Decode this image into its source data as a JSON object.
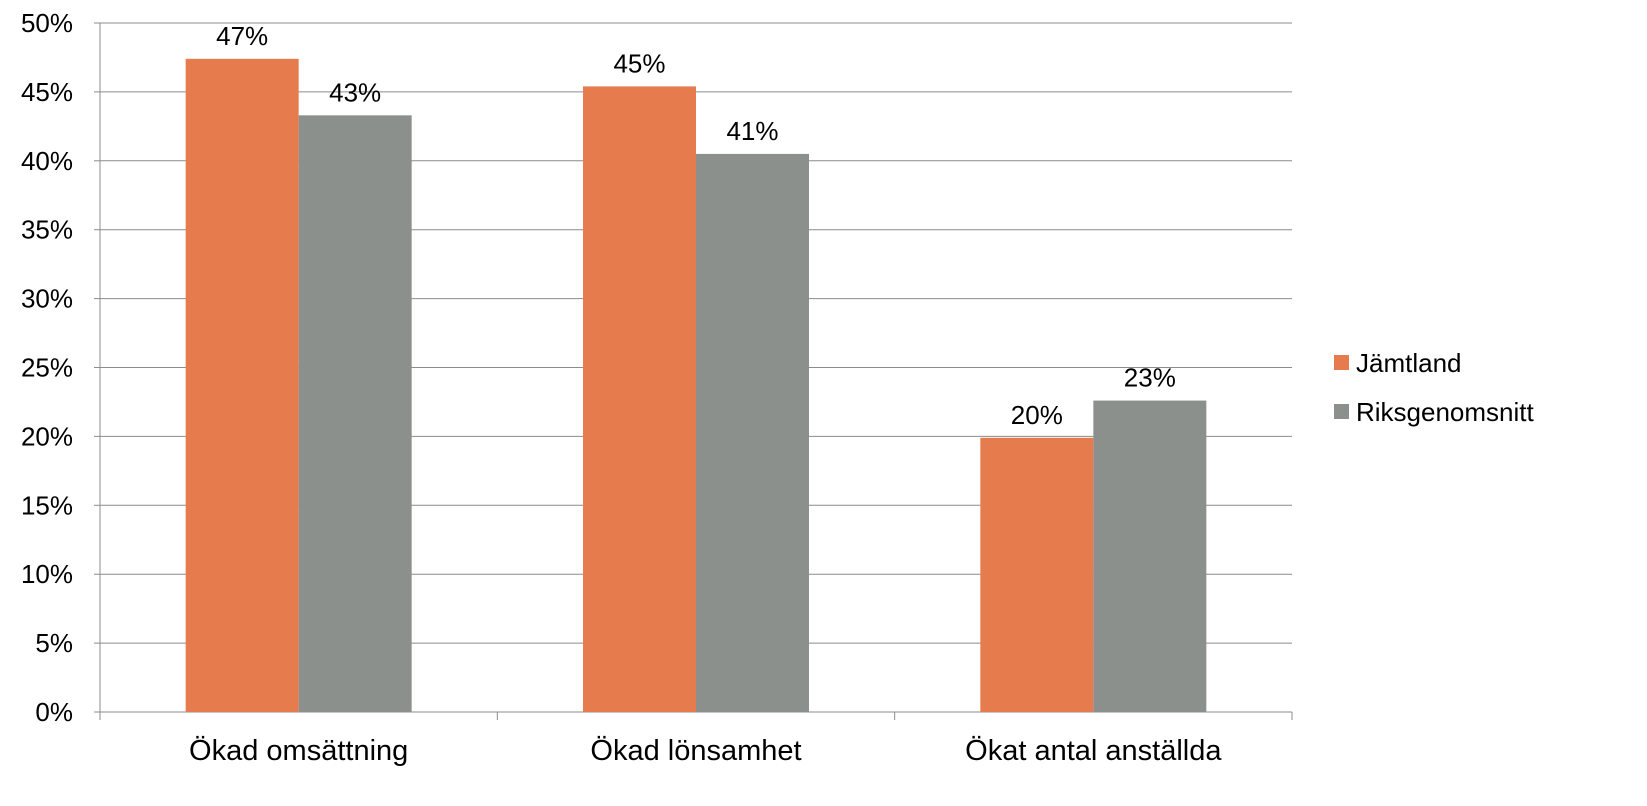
{
  "chart_data": {
    "type": "bar",
    "categories": [
      "Ökad omsättning",
      "Ökad lönsamhet",
      "Ökat antal anställda"
    ],
    "series": [
      {
        "name": "Jämtland",
        "color": "#E67C4E",
        "values": [
          0.474,
          0.454,
          0.199
        ],
        "labels": [
          "47%",
          "45%",
          "20%"
        ]
      },
      {
        "name": "Riksgenomsnitt",
        "color": "#8B908D",
        "values": [
          0.433,
          0.405,
          0.226
        ],
        "labels": [
          "43%",
          "41%",
          "23%"
        ]
      }
    ],
    "ylim": [
      0,
      0.5
    ],
    "yticks": [
      0,
      0.05,
      0.1,
      0.15,
      0.2,
      0.25,
      0.3,
      0.35,
      0.4,
      0.45,
      0.5
    ],
    "ytick_labels": [
      "0%",
      "5%",
      "10%",
      "15%",
      "20%",
      "25%",
      "30%",
      "35%",
      "40%",
      "45%",
      "50%"
    ],
    "grid": true,
    "legend_position": "right",
    "title": "",
    "xlabel": "",
    "ylabel": ""
  }
}
